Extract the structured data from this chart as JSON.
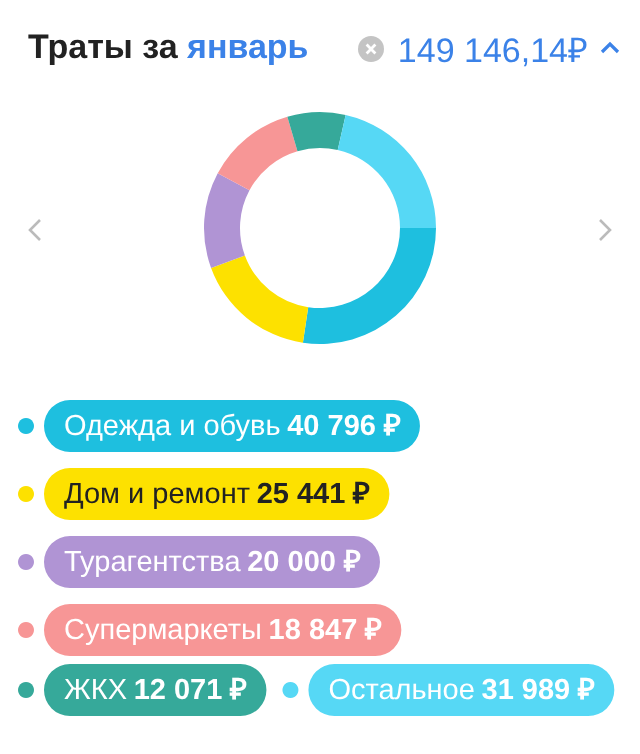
{
  "chart_data": {
    "type": "donut",
    "title": "Траты за январь",
    "subtitle": "149 146,14₽",
    "categories": [
      "Одежда и обувь",
      "Дом и ремонт",
      "Турагентства",
      "Супермаркеты",
      "ЖКХ",
      "Остальное"
    ],
    "values": [
      40796,
      25441,
      20000,
      18847,
      12071,
      31989
    ],
    "value_labels": [
      "40 796 ₽",
      "25 441 ₽",
      "20 000 ₽",
      "18 847 ₽",
      "12 071 ₽",
      "31 989 ₽"
    ],
    "colors": [
      "#1ebfdf",
      "#fde100",
      "#b094d4",
      "#f79696",
      "#36a99a",
      "#56d8f5"
    ],
    "legend": "bottom"
  }
}
